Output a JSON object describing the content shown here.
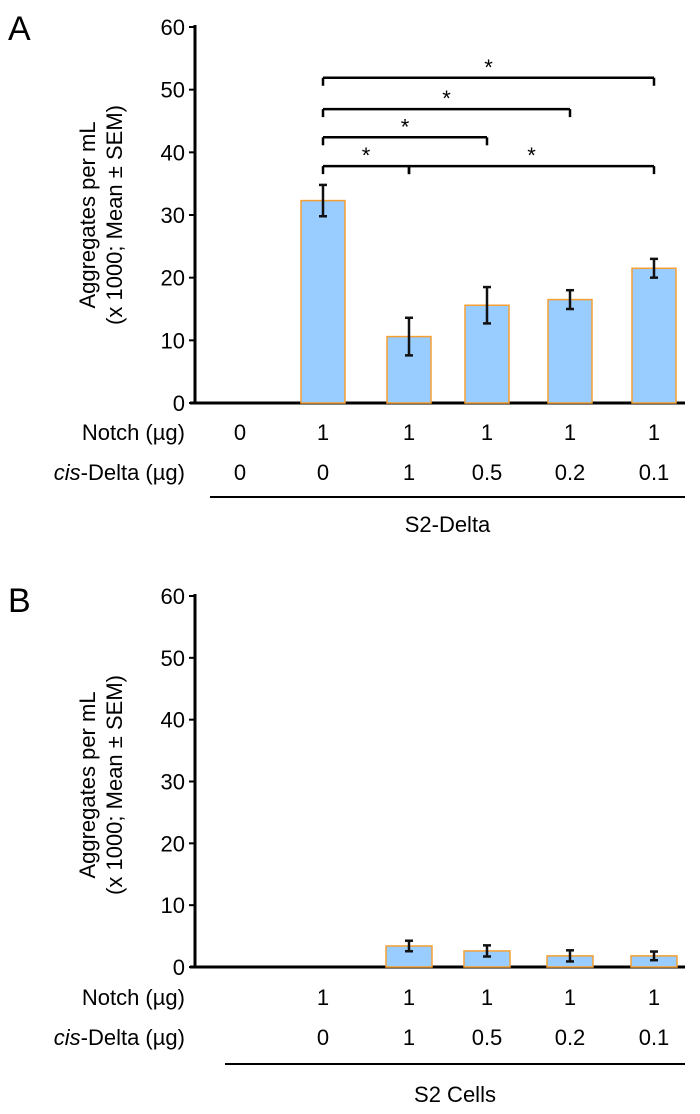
{
  "chart_data": [
    {
      "type": "bar",
      "panel_label": "A",
      "ylabel_line1": "Aggregates per mL",
      "ylabel_line2": "(x 1000; Mean ± SEM)",
      "ylim": [
        0,
        60
      ],
      "yticks": [
        "0",
        "10",
        "20",
        "30",
        "40",
        "50",
        "60"
      ],
      "row_labels": {
        "notch": "Notch (µg)",
        "cis_prefix": "cis",
        "cis_suffix": "-Delta (µg)"
      },
      "notch": [
        "0",
        "1",
        "1",
        "1",
        "1",
        "1"
      ],
      "cis_delta": [
        "0",
        "0",
        "1",
        "0.5",
        "0.2",
        "0.1"
      ],
      "group_label": "S2-Delta",
      "values": [
        0,
        32.3,
        10.6,
        15.6,
        16.5,
        21.5
      ],
      "errors": [
        0,
        2.5,
        3.0,
        2.9,
        1.5,
        1.5
      ],
      "bar_fill": "#99ccff",
      "bar_stroke": "#f5a033",
      "significance": [
        {
          "from": 1,
          "to": 5,
          "level": 51.9,
          "label": "*"
        },
        {
          "from": 1,
          "to": 4,
          "level": 46.9,
          "label": "*"
        },
        {
          "from": 1,
          "to": 3,
          "level": 42.4,
          "label": "*"
        },
        {
          "from": 1,
          "to": 2,
          "level": 37.8,
          "label": "*"
        },
        {
          "from": 2,
          "to": 5,
          "level": 37.8,
          "label": "*"
        }
      ],
      "grid": false
    },
    {
      "type": "bar",
      "panel_label": "B",
      "ylabel_line1": "Aggregates per mL",
      "ylabel_line2": "(x 1000; Mean ± SEM)",
      "ylim": [
        0,
        60
      ],
      "yticks": [
        "0",
        "10",
        "20",
        "30",
        "40",
        "50",
        "60"
      ],
      "row_labels": {
        "notch": "Notch (µg)",
        "cis_prefix": "cis",
        "cis_suffix": "-Delta (µg)"
      },
      "notch": [
        "1",
        "1",
        "1",
        "1",
        "1"
      ],
      "cis_delta": [
        "0",
        "1",
        "0.5",
        "0.2",
        "0.1"
      ],
      "group_label": "S2 Cells",
      "values": [
        0,
        3.4,
        2.6,
        1.8,
        1.8
      ],
      "errors": [
        0,
        0.85,
        0.9,
        0.9,
        0.7
      ],
      "bar_fill": "#99ccff",
      "bar_stroke": "#f5a033",
      "significance": [],
      "grid": false
    }
  ]
}
